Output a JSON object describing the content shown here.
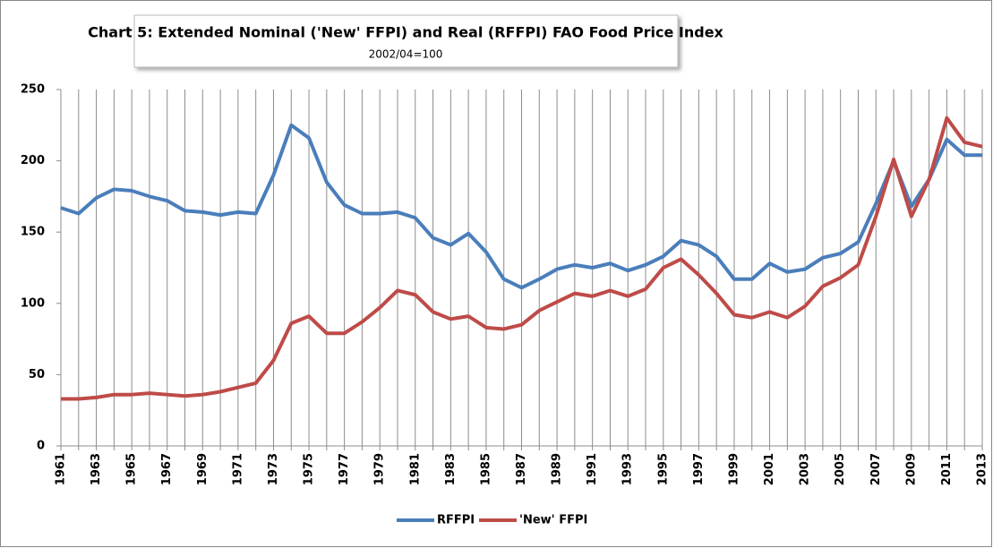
{
  "chart_data": {
    "type": "line",
    "title": "Chart 5: Extended Nominal ('New' FFPI) and Real (RFFPI) FAO Food Price Index",
    "subtitle": "2002/04=100",
    "categories": [
      "1961",
      null,
      "1963",
      null,
      "1965",
      null,
      "1967",
      null,
      "1969",
      null,
      "1971",
      null,
      "1973",
      null,
      "1975",
      null,
      "1977",
      null,
      "1979",
      null,
      "1981",
      null,
      "1983",
      null,
      "1985",
      null,
      "1987",
      null,
      "1989",
      null,
      "1991",
      null,
      "1993",
      null,
      "1995",
      null,
      "1997",
      null,
      "1999",
      null,
      "2001",
      null,
      "2003",
      null,
      "2005",
      null,
      "2007",
      null,
      "2009",
      null,
      "2011",
      null,
      "2013"
    ],
    "series": [
      {
        "name": "RFFPI",
        "color": "#4a7ebb",
        "values": [
          167,
          163,
          174,
          180,
          179,
          175,
          172,
          165,
          164,
          162,
          164,
          163,
          190,
          225,
          216,
          185,
          169,
          163,
          163,
          164,
          160,
          146,
          141,
          149,
          136,
          117,
          111,
          117,
          124,
          127,
          125,
          128,
          123,
          127,
          133,
          144,
          141,
          133,
          117,
          117,
          128,
          122,
          124,
          132,
          135,
          143,
          170,
          200,
          168,
          187,
          215,
          204,
          204
        ]
      },
      {
        "name": "'New' FFPI",
        "color": "#be4b48",
        "values": [
          33,
          33,
          34,
          36,
          36,
          37,
          36,
          35,
          36,
          38,
          41,
          44,
          60,
          86,
          91,
          79,
          79,
          87,
          97,
          109,
          106,
          94,
          89,
          91,
          83,
          82,
          85,
          95,
          101,
          107,
          105,
          109,
          105,
          110,
          125,
          131,
          120,
          107,
          92,
          90,
          94,
          90,
          98,
          112,
          118,
          127,
          161,
          201,
          161,
          187,
          230,
          213,
          210
        ]
      }
    ],
    "ylim": [
      0,
      250
    ],
    "yticks": [
      0,
      50,
      100,
      150,
      200,
      250
    ],
    "vertical_grid": true,
    "legend": "bottom"
  }
}
